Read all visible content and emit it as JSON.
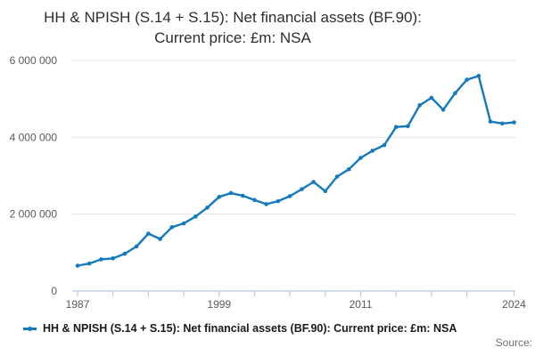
{
  "title": {
    "line1": "HH & NPISH (S.14 + S.15): Net financial assets (BF.90):",
    "line2": "Current price: £m: NSA"
  },
  "legend": {
    "label": "HH & NPISH (S.14 + S.15): Net financial assets (BF.90): Current price: £m: NSA"
  },
  "source": {
    "label": "Source:"
  },
  "chart_data": {
    "type": "line",
    "title": "HH & NPISH (S.14 + S.15): Net financial assets (BF.90): Current price: £m: NSA",
    "xlabel": "",
    "ylabel": "",
    "x": [
      1987,
      1988,
      1989,
      1990,
      1991,
      1992,
      1993,
      1994,
      1995,
      1996,
      1997,
      1998,
      1999,
      2000,
      2001,
      2002,
      2003,
      2004,
      2005,
      2006,
      2007,
      2008,
      2009,
      2010,
      2011,
      2012,
      2013,
      2014,
      2015,
      2016,
      2017,
      2018,
      2019,
      2020,
      2021,
      2022,
      2023,
      2024
    ],
    "values": [
      660000,
      715000,
      825000,
      850000,
      970000,
      1160000,
      1495000,
      1355000,
      1660000,
      1760000,
      1940000,
      2170000,
      2450000,
      2550000,
      2480000,
      2370000,
      2260000,
      2340000,
      2470000,
      2650000,
      2840000,
      2600000,
      2980000,
      3170000,
      3465000,
      3650000,
      3800000,
      4270000,
      4290000,
      4835000,
      5030000,
      4720000,
      5150000,
      5500000,
      5600000,
      4410000,
      4360000,
      4390000
    ],
    "ylim": [
      0,
      6000000
    ],
    "grid": true,
    "markers": true,
    "legend_position": "bottom",
    "y_ticks": [
      {
        "value": 0,
        "label": "0"
      },
      {
        "value": 2000000,
        "label": "2 000 000"
      },
      {
        "value": 4000000,
        "label": "4 000 000"
      },
      {
        "value": 6000000,
        "label": "6 000 000"
      }
    ],
    "x_tick_years": [
      1987,
      1990,
      1993,
      1996,
      1999,
      2002,
      2005,
      2008,
      2011,
      2014,
      2017,
      2020,
      2024
    ],
    "x_label_years": [
      1987,
      1999,
      2011,
      2024
    ],
    "colors": {
      "line": "#1579bd",
      "grid": "#e6e6e6",
      "axis": "#b9cbdd",
      "tick_text": "#5a5a5a",
      "title_text": "#2e2e2e"
    }
  }
}
